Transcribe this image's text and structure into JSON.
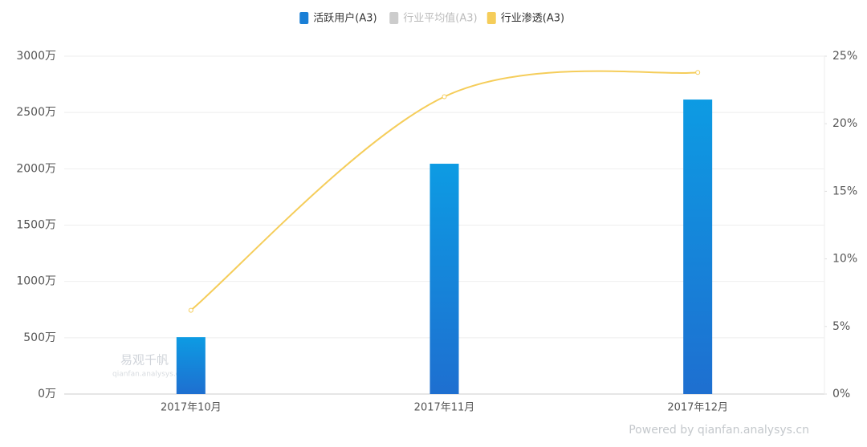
{
  "chart_data": {
    "type": "bar",
    "categories": [
      "2017年10月",
      "2017年11月",
      "2017年12月"
    ],
    "series": [
      {
        "name": "活跃用户(A3)",
        "type": "bar",
        "color": "#1a7fd6",
        "values": [
          505,
          2045,
          2615
        ]
      },
      {
        "name": "行业平均值(A3)",
        "type": "line",
        "color": "#cccccc",
        "hidden": true,
        "values": [
          null,
          null,
          null
        ]
      },
      {
        "name": "行业渗透(A3)",
        "type": "line",
        "color": "#f5cd5a",
        "axis": "y2",
        "values": [
          6.2,
          22.0,
          23.8
        ]
      }
    ],
    "ylim": [
      0,
      3000
    ],
    "yticks": [
      {
        "value": 0,
        "label": "0万"
      },
      {
        "value": 500,
        "label": "500万"
      },
      {
        "value": 1000,
        "label": "1000万"
      },
      {
        "value": 1500,
        "label": "1500万"
      },
      {
        "value": 2000,
        "label": "2000万"
      },
      {
        "value": 2500,
        "label": "2500万"
      },
      {
        "value": 3000,
        "label": "3000万"
      }
    ],
    "y2lim": [
      0,
      25
    ],
    "y2ticks": [
      {
        "value": 0,
        "label": "0%"
      },
      {
        "value": 5,
        "label": "5%"
      },
      {
        "value": 10,
        "label": "10%"
      },
      {
        "value": 15,
        "label": "15%"
      },
      {
        "value": 20,
        "label": "20%"
      },
      {
        "value": 25,
        "label": "25%"
      }
    ],
    "grid": true,
    "legend": "top",
    "watermark": [
      "易观千帆",
      "qianfan.analysys.cn"
    ],
    "credit": "Powered by qianfan.analysys.cn"
  }
}
